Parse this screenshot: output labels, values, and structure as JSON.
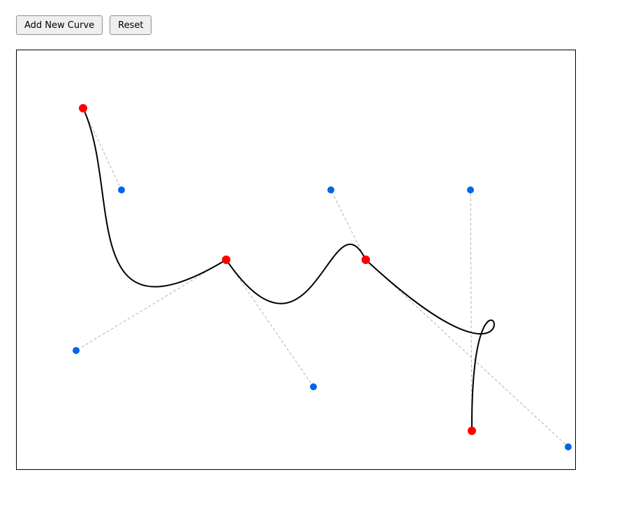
{
  "toolbar": {
    "add_label": "Add New Curve",
    "reset_label": "Reset"
  },
  "colors": {
    "anchor": "#ff0000",
    "handle": "#0066ee",
    "curve": "#000000",
    "guide": "#b3b3b3"
  },
  "curves": [
    {
      "start": [
        95,
        83
      ],
      "control1": [
        150,
        200
      ],
      "control2": [
        85,
        430
      ],
      "end": [
        300,
        300
      ]
    },
    {
      "start": [
        300,
        300
      ],
      "control1": [
        425,
        482
      ],
      "control2": [
        450,
        200
      ],
      "end": [
        500,
        300
      ]
    },
    {
      "start": [
        500,
        300
      ],
      "control1": [
        790,
        568
      ],
      "control2": [
        650,
        200
      ],
      "end": [
        652,
        545
      ]
    }
  ]
}
